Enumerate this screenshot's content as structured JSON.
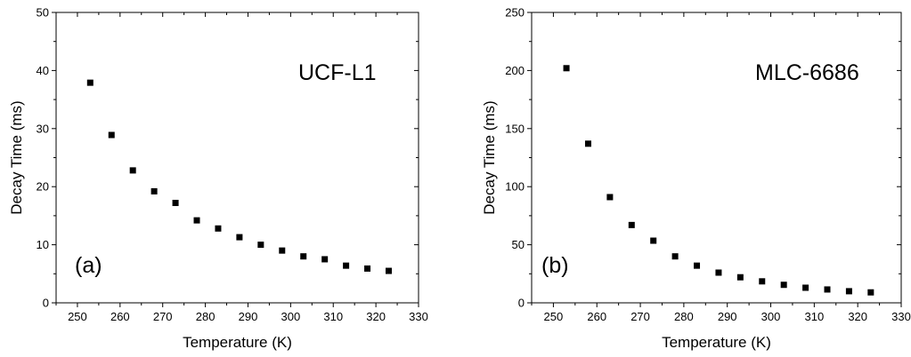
{
  "chart_data": [
    {
      "type": "scatter",
      "panel_label": "(a)",
      "sample_label": "UCF-L1",
      "xlabel": "Temperature (K)",
      "ylabel": "Decay Time (ms)",
      "xlim": [
        245,
        330
      ],
      "ylim": [
        0,
        50
      ],
      "xticks": [
        250,
        260,
        270,
        280,
        290,
        300,
        310,
        320,
        330
      ],
      "yticks": [
        0,
        10,
        20,
        30,
        40,
        50
      ],
      "grid": false,
      "marker": "square",
      "x": [
        253,
        258,
        263,
        268,
        273,
        278,
        283,
        288,
        293,
        298,
        303,
        308,
        313,
        318,
        323
      ],
      "y": [
        37.9,
        28.9,
        22.8,
        19.2,
        17.2,
        14.2,
        12.8,
        11.3,
        10.0,
        9.0,
        8.0,
        7.5,
        6.4,
        5.9,
        5.5
      ]
    },
    {
      "type": "scatter",
      "panel_label": "(b)",
      "sample_label": "MLC-6686",
      "xlabel": "Temperature (K)",
      "ylabel": "Decay Time (ms)",
      "xlim": [
        245,
        330
      ],
      "ylim": [
        0,
        250
      ],
      "xticks": [
        250,
        260,
        270,
        280,
        290,
        300,
        310,
        320,
        330
      ],
      "yticks": [
        0,
        50,
        100,
        150,
        200,
        250
      ],
      "grid": false,
      "marker": "square",
      "x": [
        253,
        258,
        263,
        268,
        273,
        278,
        283,
        288,
        293,
        298,
        303,
        308,
        313,
        318,
        323
      ],
      "y": [
        202,
        137,
        91,
        67,
        53.5,
        40,
        32,
        26,
        22,
        18.5,
        15.5,
        13,
        11.5,
        10,
        9
      ]
    }
  ]
}
